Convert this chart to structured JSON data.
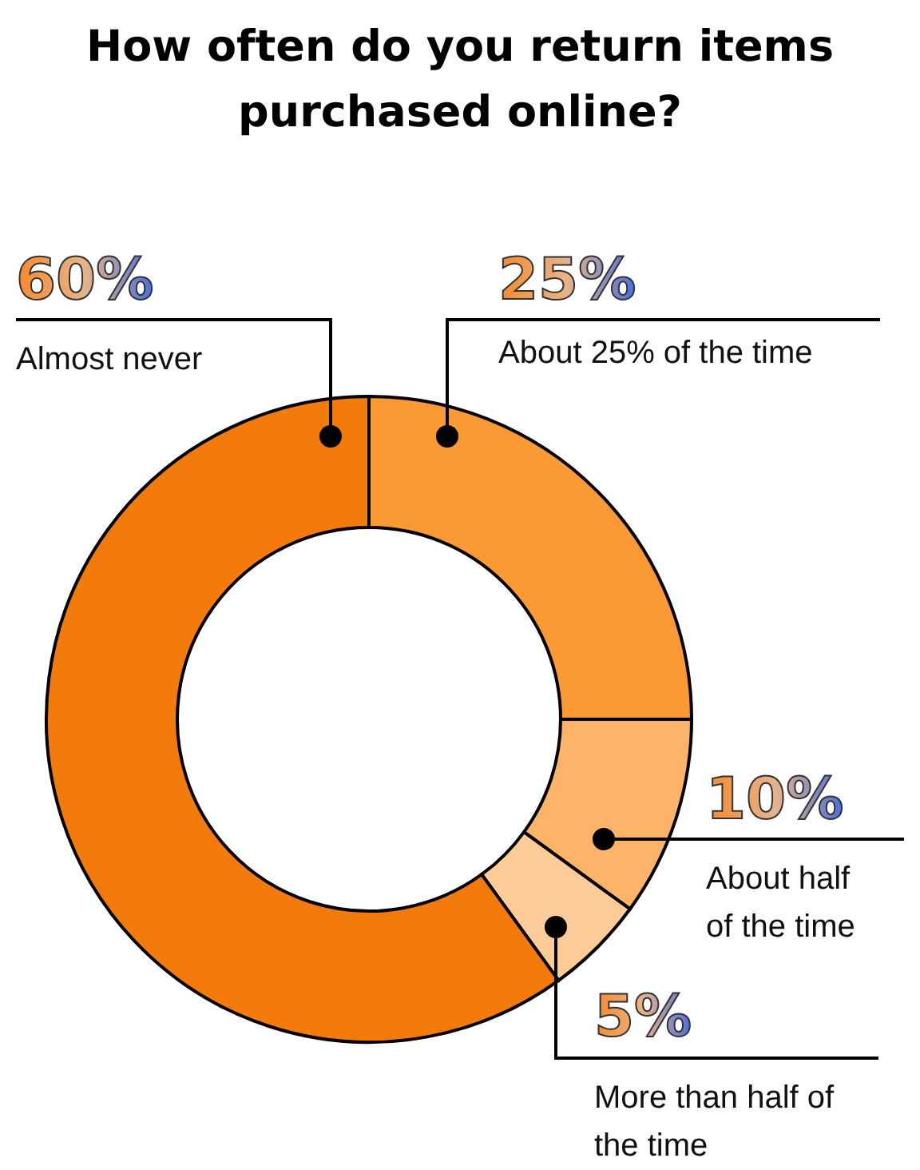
{
  "chart_data": {
    "type": "donut",
    "title": "How often do you return items purchased online?",
    "categories": [
      "About 25% of the time",
      "About half of the time",
      "More than half of the time",
      "Almost never"
    ],
    "values": [
      25,
      10,
      5,
      60
    ],
    "colors": [
      "#fb9a35",
      "#fdb469",
      "#fdcc98",
      "#f27b0c"
    ],
    "value_labels": [
      "25%",
      "10%",
      "5%",
      "60%"
    ]
  }
}
